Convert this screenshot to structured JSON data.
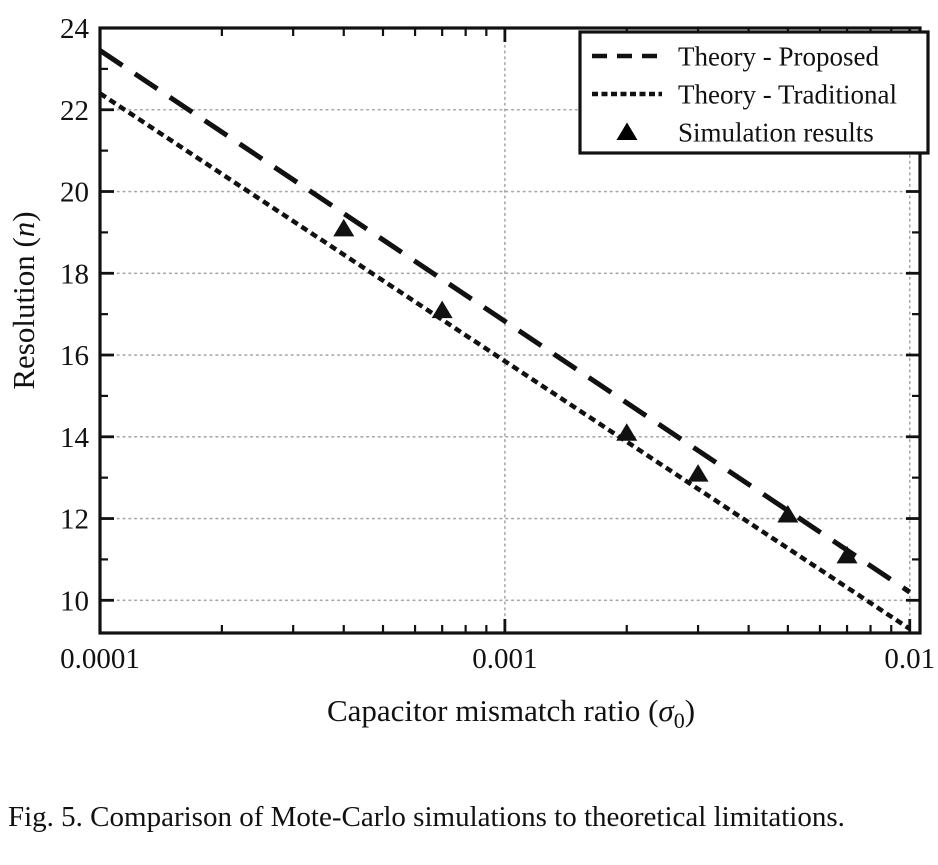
{
  "figure": {
    "caption": "Fig. 5. Comparison of Mote-Carlo simulations to theoretical limitations."
  },
  "colors": {
    "ink": "#111111",
    "grid": "#a8a8a8",
    "background": "#ffffff"
  },
  "chart_data": {
    "type": "line",
    "title": "",
    "xlabel": "Capacitor mismatch ratio (σ0)",
    "xlabel_parts": {
      "pre": "Capacitor mismatch ratio (",
      "symbol": "σ",
      "subscript": "0",
      "post": ")"
    },
    "ylabel": "Resolution (n)",
    "ylabel_parts": {
      "pre": "Resolution (",
      "italic": "n",
      "post": ")"
    },
    "x_scale": "log",
    "xlim": [
      0.0001,
      0.0106
    ],
    "ylim": [
      9.2,
      24
    ],
    "x_major_ticks": [
      0.0001,
      0.001,
      0.01
    ],
    "x_tick_labels": [
      "0.0001",
      "0.001",
      "0.01"
    ],
    "y_major_ticks": [
      10,
      12,
      14,
      16,
      18,
      20,
      22,
      24
    ],
    "y_minor_ticks": [
      11,
      13,
      15,
      17,
      19,
      21,
      23
    ],
    "grid": {
      "x_values": [
        0.001,
        0.01
      ],
      "y_values": [
        10,
        12,
        14,
        16,
        18,
        20,
        22
      ],
      "style": "dotted"
    },
    "series": [
      {
        "name": "Theory - Proposed",
        "style": "dashed",
        "points": [
          [
            0.0001,
            23.45
          ],
          [
            0.01,
            10.2
          ]
        ]
      },
      {
        "name": "Theory - Traditional",
        "style": "dotted",
        "points": [
          [
            0.0001,
            22.4
          ],
          [
            0.01,
            9.3
          ]
        ]
      },
      {
        "name": "Simulation results",
        "style": "triangle-markers",
        "points": [
          [
            0.0004,
            19
          ],
          [
            0.0007,
            17
          ],
          [
            0.002,
            14
          ],
          [
            0.003,
            13
          ],
          [
            0.005,
            12
          ],
          [
            0.007,
            11
          ]
        ]
      }
    ],
    "legend": {
      "position": "top-right",
      "entries": [
        "Theory - Proposed",
        "Theory - Traditional",
        "Simulation results"
      ]
    }
  }
}
